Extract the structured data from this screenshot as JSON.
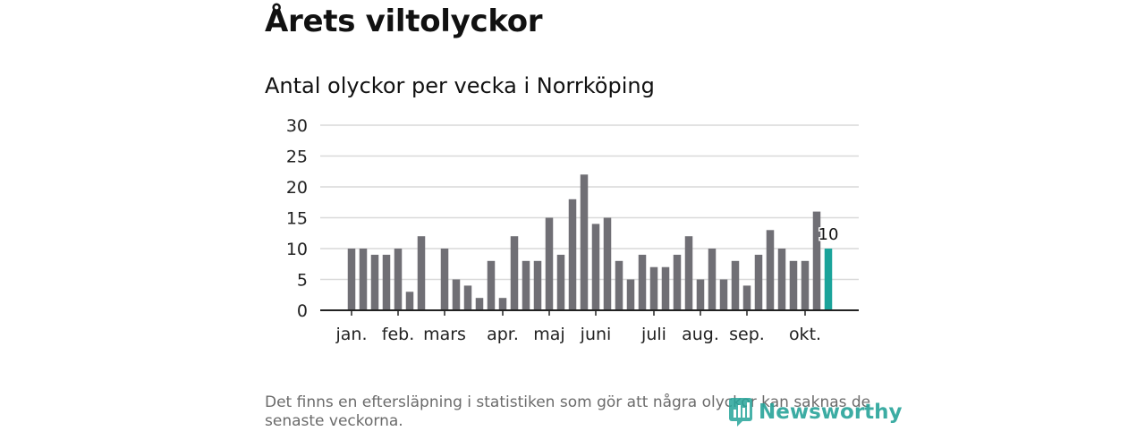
{
  "headline": "Årets viltolyckor",
  "chart_data": {
    "type": "bar",
    "title": "Antal olyckor per vecka i Norrköping",
    "xlabel": "",
    "ylabel": "",
    "ylim": [
      0,
      30
    ],
    "yticks": [
      0,
      5,
      10,
      15,
      20,
      25,
      30
    ],
    "weeks": [
      1,
      2,
      3,
      4,
      5,
      6,
      7,
      8,
      9,
      10,
      11,
      12,
      13,
      14,
      15,
      16,
      17,
      18,
      19,
      20,
      21,
      22,
      23,
      24,
      25,
      26,
      27,
      28,
      29,
      30,
      31,
      32,
      33,
      34,
      35,
      36,
      37,
      38,
      39,
      40,
      41,
      42
    ],
    "values": [
      10,
      10,
      9,
      9,
      10,
      3,
      12,
      0,
      10,
      5,
      4,
      2,
      8,
      2,
      12,
      8,
      8,
      15,
      9,
      18,
      22,
      14,
      15,
      8,
      5,
      9,
      7,
      7,
      9,
      12,
      5,
      10,
      5,
      8,
      4,
      9,
      13,
      10,
      8,
      8,
      16,
      10
    ],
    "month_labels": [
      {
        "label": "jan.",
        "week": 1
      },
      {
        "label": "feb.",
        "week": 5
      },
      {
        "label": "mars",
        "week": 9
      },
      {
        "label": "apr.",
        "week": 14
      },
      {
        "label": "maj",
        "week": 18
      },
      {
        "label": "juni",
        "week": 22
      },
      {
        "label": "juli",
        "week": 27
      },
      {
        "label": "aug.",
        "week": 31
      },
      {
        "label": "sep.",
        "week": 35
      },
      {
        "label": "okt.",
        "week": 40
      }
    ],
    "highlight": {
      "week": 42,
      "value": 10,
      "label": "10"
    },
    "colors": {
      "bar": "#706f75",
      "highlight": "#1aa39a",
      "grid": "#d9d9d9",
      "axis": "#222222"
    }
  },
  "footnote": "Det finns en eftersläpning i statistiken som gör att några olyckor kan saknas de senaste veckorna.",
  "logo": {
    "text": "Newsworthy",
    "icon": "newsworthy-logo-icon",
    "color": "#27a49a"
  }
}
